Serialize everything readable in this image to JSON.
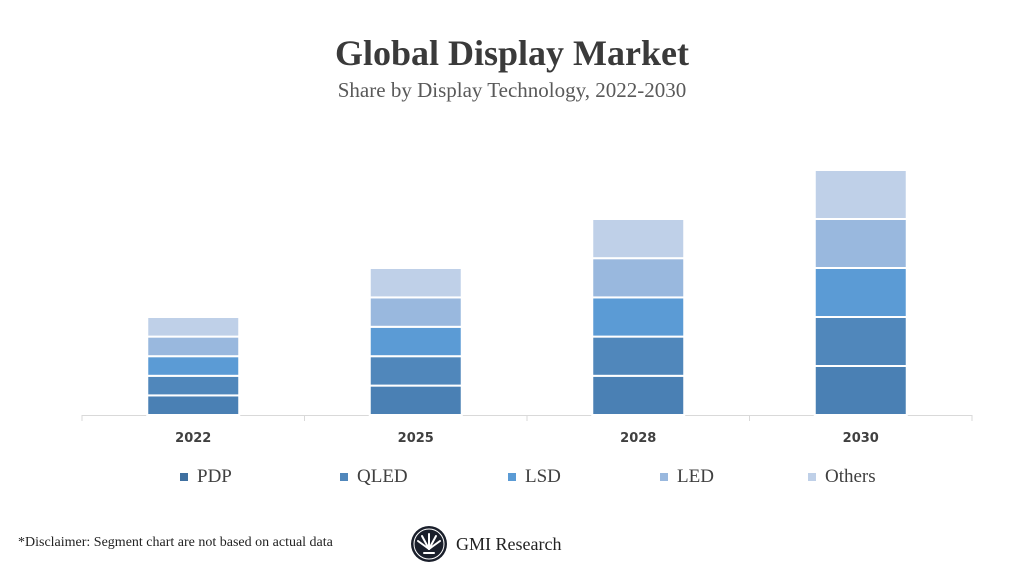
{
  "chart_data": {
    "type": "bar",
    "stacked": true,
    "title": "Global Display Market",
    "subtitle": "Share by Display Technology, 2022-2030",
    "categories": [
      "2022",
      "2025",
      "2028",
      "2030"
    ],
    "series": [
      {
        "name": "PDP",
        "values": [
          2,
          3,
          4,
          5
        ],
        "color": "#4a80b4"
      },
      {
        "name": "QLED",
        "values": [
          2,
          3,
          4,
          5
        ],
        "color": "#5087bb"
      },
      {
        "name": "LSD",
        "values": [
          2,
          3,
          4,
          5
        ],
        "color": "#5b9bd5"
      },
      {
        "name": "LED",
        "values": [
          2,
          3,
          4,
          5
        ],
        "color": "#99b8de"
      },
      {
        "name": "Others",
        "values": [
          2,
          3,
          4,
          5
        ],
        "color": "#bfd0e8"
      }
    ],
    "ylim": [
      0,
      25
    ],
    "grid": false,
    "legend": "bottom"
  },
  "footer": {
    "disclaimer": "*Disclaimer:  Segment chart are not based on actual data",
    "brand": "GMI Research"
  }
}
